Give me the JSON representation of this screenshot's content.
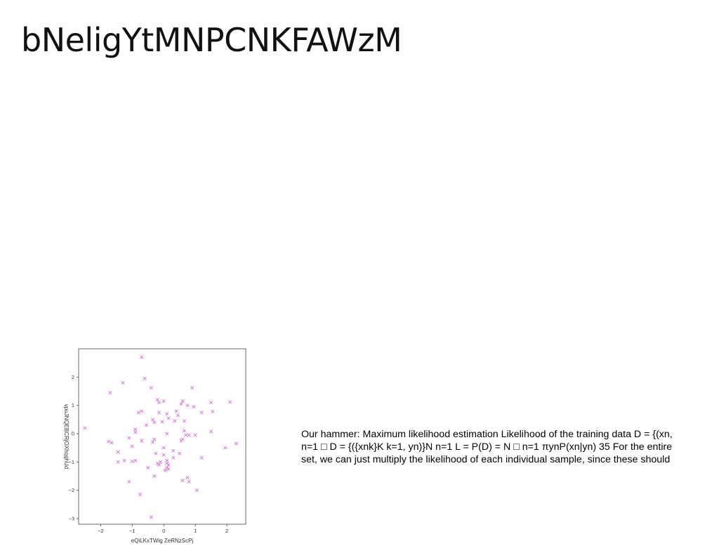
{
  "slide": {
    "title": "bNeligYtMNPCNKFAWzM",
    "text_lines": [
      "Our hammer: Maximum likelihood estimation Likelihood of the training data D = {(xn,",
      "n=1 □ D = {({xnk}K k=1, yn)}N n=1 L = P(D) = N □ n=1 πynP(xn|yn) 35 For the entire",
      "set, we can just multiply the likelihood of each individual sample, since these should"
    ]
  },
  "chart_data": {
    "type": "scatter",
    "marker": "x",
    "color": "#d36fd6",
    "xlabel": "eQiLKxTWig ZeRNzScPj",
    "ylabel": "vpuJNQEBCRjOXhqqhUd",
    "xlim": [
      -2.7,
      2.6
    ],
    "ylim": [
      -3.2,
      3.0
    ],
    "xticks": [
      -2,
      -1,
      0,
      1,
      2
    ],
    "yticks": [
      -3,
      -2,
      -1,
      0,
      1,
      2
    ],
    "grid": false,
    "points": [
      [
        -0.7,
        2.7
      ],
      [
        -0.6,
        1.95
      ],
      [
        -1.3,
        1.8
      ],
      [
        -0.4,
        1.62
      ],
      [
        0.9,
        1.62
      ],
      [
        -1.7,
        1.45
      ],
      [
        -0.2,
        1.2
      ],
      [
        0.0,
        1.15
      ],
      [
        -0.15,
        1.1
      ],
      [
        0.6,
        1.15
      ],
      [
        0.75,
        1.0
      ],
      [
        0.95,
        0.95
      ],
      [
        2.1,
        1.12
      ],
      [
        1.5,
        1.1
      ],
      [
        0.55,
        1.05
      ],
      [
        -0.8,
        0.75
      ],
      [
        -0.7,
        0.8
      ],
      [
        0.4,
        0.8
      ],
      [
        1.55,
        0.78
      ],
      [
        1.2,
        0.75
      ],
      [
        -0.15,
        0.75
      ],
      [
        0.1,
        0.7
      ],
      [
        0.45,
        0.65
      ],
      [
        0.15,
        0.55
      ],
      [
        -0.35,
        0.5
      ],
      [
        0.65,
        0.45
      ],
      [
        -0.3,
        0.4
      ],
      [
        0.35,
        0.45
      ],
      [
        -0.05,
        0.42
      ],
      [
        -0.55,
        0.3
      ],
      [
        -0.9,
        0.15
      ],
      [
        -0.9,
        0.05
      ],
      [
        0.1,
        0.0
      ],
      [
        0.65,
        0.1
      ],
      [
        0.7,
        -0.05
      ],
      [
        0.8,
        -0.05
      ],
      [
        1.0,
        -0.05
      ],
      [
        1.5,
        0.08
      ],
      [
        -2.5,
        0.2
      ],
      [
        -1.1,
        -0.15
      ],
      [
        -0.7,
        -0.25
      ],
      [
        -0.3,
        -0.2
      ],
      [
        -0.35,
        -0.3
      ],
      [
        0.55,
        -0.25
      ],
      [
        0.6,
        -0.2
      ],
      [
        -1.75,
        -0.28
      ],
      [
        -1.65,
        -0.32
      ],
      [
        -1.0,
        -0.45
      ],
      [
        0.0,
        -0.5
      ],
      [
        0.3,
        -0.6
      ],
      [
        -1.45,
        -0.65
      ],
      [
        -0.25,
        -0.7
      ],
      [
        0.0,
        -0.75
      ],
      [
        0.5,
        -0.7
      ],
      [
        2.3,
        -0.35
      ],
      [
        1.95,
        -0.5
      ],
      [
        1.2,
        -0.85
      ],
      [
        -1.45,
        -1.0
      ],
      [
        -1.25,
        -0.95
      ],
      [
        -1.0,
        -0.98
      ],
      [
        -0.9,
        -0.95
      ],
      [
        -0.2,
        -1.05
      ],
      [
        -0.15,
        -1.1
      ],
      [
        0.1,
        -0.95
      ],
      [
        0.1,
        -1.05
      ],
      [
        0.15,
        -1.1
      ],
      [
        0.1,
        -1.2
      ],
      [
        0.15,
        -1.25
      ],
      [
        0.05,
        -1.3
      ],
      [
        -0.5,
        -1.2
      ],
      [
        -1.1,
        -1.7
      ],
      [
        0.75,
        -1.55
      ],
      [
        0.6,
        -1.65
      ],
      [
        0.8,
        -1.7
      ],
      [
        -0.3,
        -1.5
      ],
      [
        1.05,
        -2.0
      ],
      [
        -0.75,
        -2.15
      ],
      [
        -0.4,
        -2.95
      ],
      [
        -0.1,
        -1.0
      ],
      [
        0.3,
        -0.85
      ]
    ]
  }
}
